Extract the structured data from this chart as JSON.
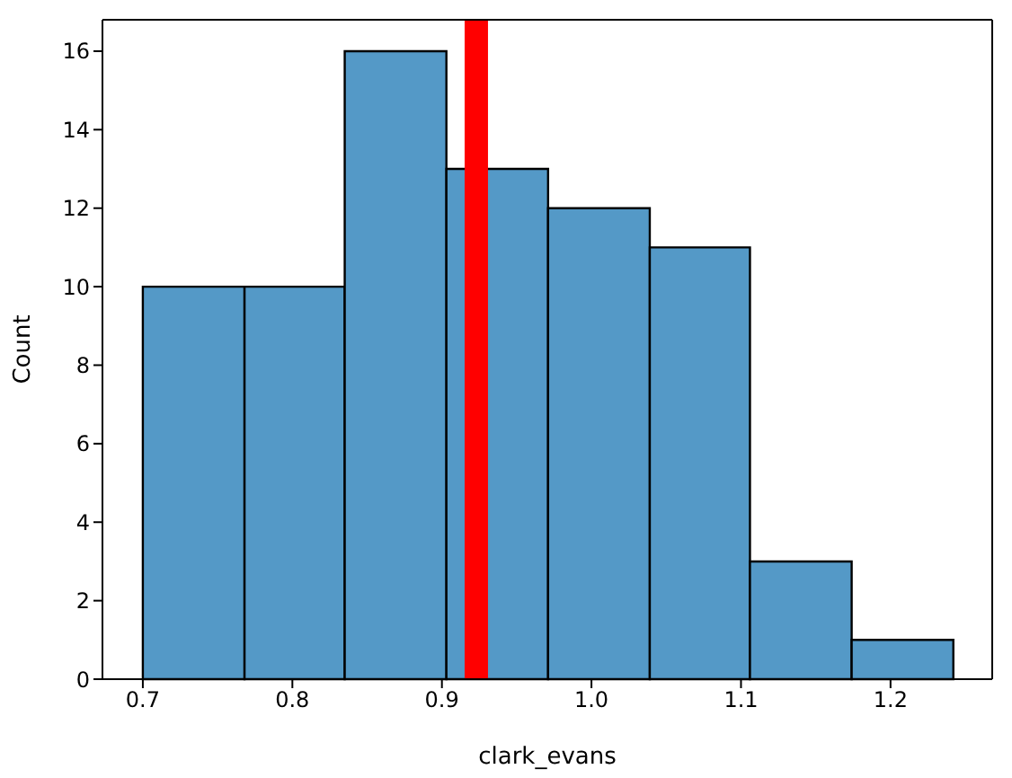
{
  "chart_data": {
    "type": "histogram",
    "xlabel": "clark_evans",
    "ylabel": "Count",
    "bins": [
      0.7,
      0.768,
      0.835,
      0.903,
      0.971,
      1.039,
      1.106,
      1.174,
      1.242
    ],
    "values": [
      10,
      10,
      16,
      13,
      12,
      11,
      3,
      1
    ],
    "color": "#5499c7",
    "xlim": [
      0.673,
      1.268
    ],
    "xticks": [
      {
        "value": 0.7,
        "label": "0.7"
      },
      {
        "value": 0.8,
        "label": "0.8"
      },
      {
        "value": 0.9,
        "label": "0.9"
      },
      {
        "value": 1.0,
        "label": "1.0"
      },
      {
        "value": 1.1,
        "label": "1.1"
      },
      {
        "value": 1.2,
        "label": "1.2"
      }
    ],
    "ylim": [
      0,
      16.8
    ],
    "yticks": [
      0,
      2,
      4,
      6,
      8,
      10,
      12,
      14,
      16
    ],
    "ref_lines": [
      {
        "axis": "x",
        "value": 0.923,
        "color": "#ff0000"
      }
    ],
    "grid": false
  }
}
